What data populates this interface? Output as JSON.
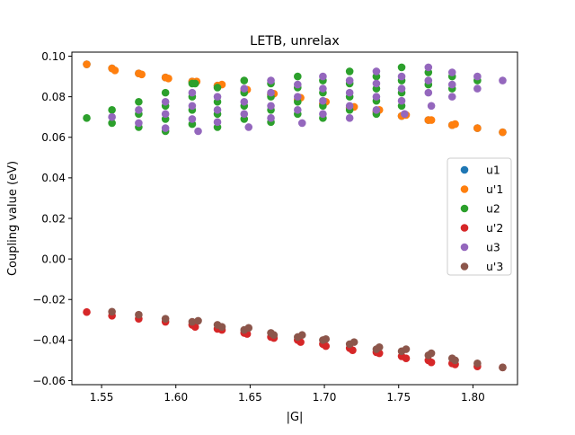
{
  "chart_data": {
    "type": "scatter",
    "title": "LETB, unrelax",
    "xlabel": "|G|",
    "ylabel": "Coupling value (eV)",
    "xlim": [
      1.53,
      1.83
    ],
    "ylim": [
      -0.062,
      0.102
    ],
    "xticks": [
      "1.55",
      "1.60",
      "1.65",
      "1.70",
      "1.75",
      "1.80"
    ],
    "yticks": [
      "−0.06",
      "−0.04",
      "−0.02",
      "0.00",
      "0.02",
      "0.04",
      "0.06",
      "0.08",
      "0.10"
    ],
    "grid": false,
    "legend_position": "center-right",
    "series": [
      {
        "name": "u1",
        "color": "#1f77b4",
        "points": [
          [
            1.54,
            0.096
          ],
          [
            1.557,
            0.094
          ],
          [
            1.575,
            0.0915
          ],
          [
            1.593,
            0.0895
          ],
          [
            1.611,
            0.0875
          ],
          [
            1.628,
            0.0855
          ],
          [
            1.646,
            0.083
          ],
          [
            1.664,
            0.081
          ],
          [
            1.682,
            0.0785
          ],
          [
            1.699,
            0.0765
          ],
          [
            1.717,
            0.0745
          ],
          [
            1.735,
            0.0725
          ],
          [
            1.752,
            0.0705
          ],
          [
            1.77,
            0.0685
          ],
          [
            1.786,
            0.066
          ],
          [
            1.803,
            0.0645
          ],
          [
            1.82,
            0.0625
          ]
        ]
      },
      {
        "name": "u'1",
        "color": "#ff7f0e",
        "points": [
          [
            1.54,
            0.096
          ],
          [
            1.557,
            0.094
          ],
          [
            1.575,
            0.0915
          ],
          [
            1.593,
            0.0895
          ],
          [
            1.611,
            0.0875
          ],
          [
            1.628,
            0.0855
          ],
          [
            1.646,
            0.083
          ],
          [
            1.664,
            0.081
          ],
          [
            1.682,
            0.0785
          ],
          [
            1.699,
            0.0765
          ],
          [
            1.717,
            0.0745
          ],
          [
            1.735,
            0.0725
          ],
          [
            1.752,
            0.0705
          ],
          [
            1.77,
            0.0685
          ],
          [
            1.786,
            0.066
          ],
          [
            1.803,
            0.0645
          ],
          [
            1.82,
            0.0625
          ],
          [
            1.559,
            0.093
          ],
          [
            1.577,
            0.091
          ],
          [
            1.595,
            0.089
          ],
          [
            1.614,
            0.0875
          ],
          [
            1.631,
            0.086
          ],
          [
            1.648,
            0.0835
          ],
          [
            1.666,
            0.0815
          ],
          [
            1.684,
            0.0795
          ],
          [
            1.701,
            0.0775
          ],
          [
            1.72,
            0.075
          ],
          [
            1.737,
            0.0735
          ],
          [
            1.755,
            0.071
          ],
          [
            1.772,
            0.0685
          ],
          [
            1.788,
            0.0665
          ]
        ]
      },
      {
        "name": "u2",
        "color": "#2ca02c",
        "points": [
          [
            1.54,
            0.0695
          ],
          [
            1.557,
            0.0735
          ],
          [
            1.557,
            0.067
          ],
          [
            1.575,
            0.0775
          ],
          [
            1.575,
            0.0715
          ],
          [
            1.575,
            0.065
          ],
          [
            1.593,
            0.082
          ],
          [
            1.593,
            0.0755
          ],
          [
            1.593,
            0.069
          ],
          [
            1.593,
            0.063
          ],
          [
            1.611,
            0.0865
          ],
          [
            1.611,
            0.08
          ],
          [
            1.611,
            0.0735
          ],
          [
            1.611,
            0.0665
          ],
          [
            1.628,
            0.0845
          ],
          [
            1.628,
            0.0775
          ],
          [
            1.628,
            0.0715
          ],
          [
            1.628,
            0.065
          ],
          [
            1.646,
            0.088
          ],
          [
            1.646,
            0.082
          ],
          [
            1.646,
            0.0755
          ],
          [
            1.646,
            0.069
          ],
          [
            1.664,
            0.0865
          ],
          [
            1.664,
            0.08
          ],
          [
            1.664,
            0.0735
          ],
          [
            1.664,
            0.0675
          ],
          [
            1.682,
            0.09
          ],
          [
            1.682,
            0.0845
          ],
          [
            1.682,
            0.0775
          ],
          [
            1.682,
            0.0715
          ],
          [
            1.699,
            0.088
          ],
          [
            1.699,
            0.082
          ],
          [
            1.699,
            0.0755
          ],
          [
            1.699,
            0.0695
          ],
          [
            1.717,
            0.0925
          ],
          [
            1.717,
            0.0865
          ],
          [
            1.717,
            0.08
          ],
          [
            1.717,
            0.0735
          ],
          [
            1.735,
            0.09
          ],
          [
            1.735,
            0.084
          ],
          [
            1.735,
            0.078
          ],
          [
            1.735,
            0.0715
          ],
          [
            1.752,
            0.0945
          ],
          [
            1.752,
            0.088
          ],
          [
            1.752,
            0.082
          ],
          [
            1.752,
            0.0755
          ],
          [
            1.77,
            0.092
          ],
          [
            1.77,
            0.086
          ],
          [
            1.786,
            0.09
          ],
          [
            1.786,
            0.084
          ],
          [
            1.803,
            0.088
          ],
          [
            1.613,
            0.0865
          ]
        ]
      },
      {
        "name": "u'2",
        "color": "#d62728",
        "points": [
          [
            1.54,
            -0.0262
          ],
          [
            1.557,
            -0.028
          ],
          [
            1.575,
            -0.0295
          ],
          [
            1.593,
            -0.031
          ],
          [
            1.611,
            -0.0325
          ],
          [
            1.628,
            -0.0345
          ],
          [
            1.646,
            -0.0365
          ],
          [
            1.664,
            -0.0385
          ],
          [
            1.682,
            -0.04
          ],
          [
            1.699,
            -0.042
          ],
          [
            1.717,
            -0.044
          ],
          [
            1.735,
            -0.046
          ],
          [
            1.752,
            -0.048
          ],
          [
            1.77,
            -0.05
          ],
          [
            1.786,
            -0.0515
          ],
          [
            1.803,
            -0.053
          ],
          [
            1.82,
            -0.0535
          ],
          [
            1.613,
            -0.0335
          ],
          [
            1.631,
            -0.035
          ],
          [
            1.648,
            -0.037
          ],
          [
            1.666,
            -0.039
          ],
          [
            1.684,
            -0.041
          ],
          [
            1.701,
            -0.043
          ],
          [
            1.719,
            -0.045
          ],
          [
            1.737,
            -0.0465
          ],
          [
            1.755,
            -0.049
          ],
          [
            1.772,
            -0.051
          ],
          [
            1.788,
            -0.052
          ]
        ]
      },
      {
        "name": "u3",
        "color": "#9467bd",
        "points": [
          [
            1.557,
            0.07
          ],
          [
            1.575,
            0.0735
          ],
          [
            1.575,
            0.067
          ],
          [
            1.593,
            0.0775
          ],
          [
            1.593,
            0.0715
          ],
          [
            1.593,
            0.0645
          ],
          [
            1.611,
            0.082
          ],
          [
            1.611,
            0.0755
          ],
          [
            1.611,
            0.069
          ],
          [
            1.615,
            0.063
          ],
          [
            1.628,
            0.08
          ],
          [
            1.628,
            0.0735
          ],
          [
            1.628,
            0.0675
          ],
          [
            1.646,
            0.084
          ],
          [
            1.646,
            0.0775
          ],
          [
            1.646,
            0.0715
          ],
          [
            1.649,
            0.065
          ],
          [
            1.664,
            0.088
          ],
          [
            1.664,
            0.082
          ],
          [
            1.664,
            0.0755
          ],
          [
            1.664,
            0.0695
          ],
          [
            1.682,
            0.086
          ],
          [
            1.682,
            0.08
          ],
          [
            1.682,
            0.0735
          ],
          [
            1.685,
            0.067
          ],
          [
            1.699,
            0.09
          ],
          [
            1.699,
            0.084
          ],
          [
            1.699,
            0.078
          ],
          [
            1.699,
            0.0715
          ],
          [
            1.717,
            0.088
          ],
          [
            1.717,
            0.082
          ],
          [
            1.717,
            0.0755
          ],
          [
            1.717,
            0.0695
          ],
          [
            1.735,
            0.0925
          ],
          [
            1.735,
            0.0865
          ],
          [
            1.735,
            0.08
          ],
          [
            1.735,
            0.0735
          ],
          [
            1.752,
            0.09
          ],
          [
            1.752,
            0.084
          ],
          [
            1.752,
            0.078
          ],
          [
            1.754,
            0.0715
          ],
          [
            1.77,
            0.0945
          ],
          [
            1.77,
            0.088
          ],
          [
            1.77,
            0.082
          ],
          [
            1.772,
            0.0755
          ],
          [
            1.786,
            0.092
          ],
          [
            1.786,
            0.086
          ],
          [
            1.786,
            0.08
          ],
          [
            1.803,
            0.09
          ],
          [
            1.803,
            0.084
          ],
          [
            1.82,
            0.088
          ]
        ]
      },
      {
        "name": "u'3",
        "color": "#8c564b",
        "points": [
          [
            1.557,
            -0.026
          ],
          [
            1.575,
            -0.0275
          ],
          [
            1.593,
            -0.0295
          ],
          [
            1.611,
            -0.031
          ],
          [
            1.615,
            -0.0305
          ],
          [
            1.628,
            -0.0325
          ],
          [
            1.631,
            -0.0335
          ],
          [
            1.646,
            -0.035
          ],
          [
            1.649,
            -0.034
          ],
          [
            1.664,
            -0.0365
          ],
          [
            1.666,
            -0.0375
          ],
          [
            1.682,
            -0.0385
          ],
          [
            1.685,
            -0.0375
          ],
          [
            1.699,
            -0.04
          ],
          [
            1.701,
            -0.0395
          ],
          [
            1.717,
            -0.042
          ],
          [
            1.72,
            -0.041
          ],
          [
            1.735,
            -0.0445
          ],
          [
            1.737,
            -0.0435
          ],
          [
            1.752,
            -0.0455
          ],
          [
            1.755,
            -0.0445
          ],
          [
            1.77,
            -0.0475
          ],
          [
            1.772,
            -0.0465
          ],
          [
            1.786,
            -0.049
          ],
          [
            1.788,
            -0.05
          ],
          [
            1.803,
            -0.0515
          ],
          [
            1.82,
            -0.0535
          ]
        ]
      }
    ]
  }
}
